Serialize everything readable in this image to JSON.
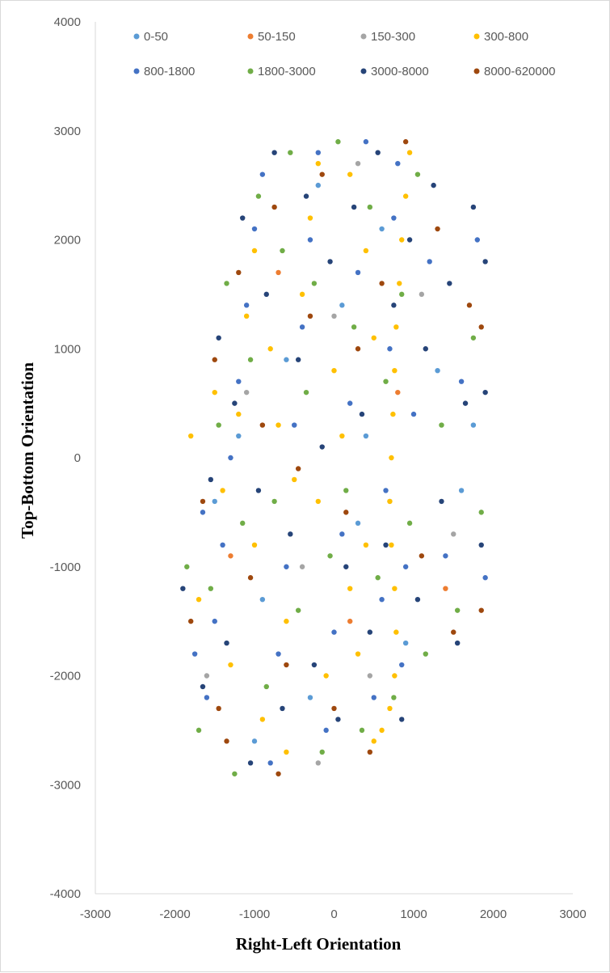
{
  "chart_data": {
    "type": "scatter",
    "title": "",
    "xlabel": "Right-Left Orientation",
    "ylabel": "Top-Bottom Orientation",
    "xlim": [
      -3000,
      3000
    ],
    "ylim": [
      -4000,
      4000
    ],
    "x_ticks": [
      "-3000",
      "-2000",
      "-1000",
      "0",
      "1000",
      "2000",
      "3000"
    ],
    "y_ticks": [
      "4000",
      "3000",
      "2000",
      "1000",
      "0",
      "-1000",
      "-2000",
      "-3000",
      "-4000"
    ],
    "grid": false,
    "legend_position": "top",
    "series": [
      {
        "name": "0-50",
        "color": "#5b9bd5",
        "points": [
          [
            -1500,
            -400
          ],
          [
            -1200,
            200
          ],
          [
            -900,
            -1300
          ],
          [
            -600,
            900
          ],
          [
            -300,
            -2200
          ],
          [
            100,
            1400
          ],
          [
            300,
            -600
          ],
          [
            600,
            2100
          ],
          [
            900,
            -1700
          ],
          [
            1300,
            800
          ],
          [
            1600,
            -300
          ],
          [
            1750,
            300
          ],
          [
            -1000,
            -2600
          ],
          [
            400,
            200
          ],
          [
            -200,
            2500
          ]
        ]
      },
      {
        "name": "50-150",
        "color": "#ed7d31",
        "points": [
          [
            -1300,
            -900
          ],
          [
            -700,
            1700
          ],
          [
            200,
            -1500
          ],
          [
            800,
            600
          ],
          [
            1400,
            -1200
          ]
        ]
      },
      {
        "name": "150-300",
        "color": "#a5a5a5",
        "points": [
          [
            -1100,
            600
          ],
          [
            -400,
            -1000
          ],
          [
            0,
            1300
          ],
          [
            450,
            -2000
          ],
          [
            700,
            -400
          ],
          [
            1100,
            1500
          ],
          [
            -1600,
            -2000
          ],
          [
            -200,
            -2800
          ],
          [
            300,
            2700
          ],
          [
            1500,
            -700
          ]
        ]
      },
      {
        "name": "300-800",
        "color": "#ffc000",
        "points": [
          [
            950,
            2800
          ],
          [
            900,
            2400
          ],
          [
            850,
            2000
          ],
          [
            820,
            1600
          ],
          [
            780,
            1200
          ],
          [
            760,
            800
          ],
          [
            740,
            400
          ],
          [
            720,
            0
          ],
          [
            700,
            -400
          ],
          [
            720,
            -800
          ],
          [
            760,
            -1200
          ],
          [
            780,
            -1600
          ],
          [
            760,
            -2000
          ],
          [
            700,
            -2300
          ],
          [
            600,
            -2500
          ],
          [
            500,
            -2600
          ],
          [
            -1400,
            -300
          ],
          [
            -1200,
            400
          ],
          [
            -1000,
            -800
          ],
          [
            -800,
            1000
          ],
          [
            -600,
            -1500
          ],
          [
            -400,
            1500
          ],
          [
            -200,
            -400
          ],
          [
            0,
            800
          ],
          [
            200,
            -1200
          ],
          [
            400,
            1900
          ],
          [
            -1700,
            -1300
          ],
          [
            -1500,
            600
          ],
          [
            -1300,
            -1900
          ],
          [
            -1100,
            1300
          ],
          [
            -900,
            -2400
          ],
          [
            -700,
            300
          ],
          [
            -500,
            -200
          ],
          [
            -300,
            2200
          ],
          [
            -100,
            -2000
          ],
          [
            100,
            200
          ],
          [
            300,
            -1800
          ],
          [
            500,
            1100
          ],
          [
            -1800,
            200
          ],
          [
            -1000,
            1900
          ],
          [
            -600,
            -2700
          ],
          [
            -200,
            2700
          ],
          [
            200,
            2600
          ],
          [
            400,
            -800
          ]
        ]
      },
      {
        "name": "800-1800",
        "color": "#4472c4",
        "points": [
          [
            -1600,
            -2200
          ],
          [
            -1500,
            -1500
          ],
          [
            -1400,
            -800
          ],
          [
            -1300,
            0
          ],
          [
            -1200,
            700
          ],
          [
            -1100,
            1400
          ],
          [
            -1000,
            2100
          ],
          [
            -900,
            2600
          ],
          [
            -800,
            -2800
          ],
          [
            -700,
            -1800
          ],
          [
            -600,
            -1000
          ],
          [
            -500,
            300
          ],
          [
            -400,
            1200
          ],
          [
            -300,
            2000
          ],
          [
            -200,
            2800
          ],
          [
            -100,
            -2500
          ],
          [
            0,
            -1600
          ],
          [
            100,
            -700
          ],
          [
            200,
            500
          ],
          [
            300,
            1700
          ],
          [
            400,
            2900
          ],
          [
            500,
            -2200
          ],
          [
            600,
            -1300
          ],
          [
            650,
            -300
          ],
          [
            700,
            1000
          ],
          [
            750,
            2200
          ],
          [
            800,
            2700
          ],
          [
            850,
            -1900
          ],
          [
            900,
            -1000
          ],
          [
            1000,
            400
          ],
          [
            1200,
            1800
          ],
          [
            1400,
            -900
          ],
          [
            1600,
            700
          ],
          [
            1800,
            2000
          ],
          [
            1900,
            -1100
          ],
          [
            -1750,
            -1800
          ],
          [
            -1650,
            -500
          ]
        ]
      },
      {
        "name": "1800-3000",
        "color": "#70ad47",
        "points": [
          [
            -1850,
            -1000
          ],
          [
            -1700,
            -2500
          ],
          [
            -1550,
            -1200
          ],
          [
            -1450,
            300
          ],
          [
            -1350,
            1600
          ],
          [
            -1250,
            -2900
          ],
          [
            -1150,
            -600
          ],
          [
            -1050,
            900
          ],
          [
            -950,
            2400
          ],
          [
            -850,
            -2100
          ],
          [
            -750,
            -400
          ],
          [
            -650,
            1900
          ],
          [
            -550,
            2800
          ],
          [
            -450,
            -1400
          ],
          [
            -350,
            600
          ],
          [
            -250,
            1600
          ],
          [
            -150,
            -2700
          ],
          [
            -50,
            -900
          ],
          [
            50,
            2900
          ],
          [
            150,
            -300
          ],
          [
            250,
            1200
          ],
          [
            350,
            -2500
          ],
          [
            450,
            2300
          ],
          [
            550,
            -1100
          ],
          [
            650,
            700
          ],
          [
            750,
            -2200
          ],
          [
            850,
            1500
          ],
          [
            950,
            -600
          ],
          [
            1050,
            2600
          ],
          [
            1150,
            -1800
          ],
          [
            1350,
            300
          ],
          [
            1550,
            -1400
          ],
          [
            1750,
            1100
          ],
          [
            1850,
            -500
          ]
        ]
      },
      {
        "name": "3000-8000",
        "color": "#264478",
        "points": [
          [
            -1900,
            -1200
          ],
          [
            -1650,
            -2100
          ],
          [
            -1550,
            -200
          ],
          [
            -1450,
            1100
          ],
          [
            -1350,
            -1700
          ],
          [
            -1250,
            500
          ],
          [
            -1150,
            2200
          ],
          [
            -1050,
            -2800
          ],
          [
            -950,
            -300
          ],
          [
            -850,
            1500
          ],
          [
            -750,
            2800
          ],
          [
            -650,
            -2300
          ],
          [
            -550,
            -700
          ],
          [
            -450,
            900
          ],
          [
            -350,
            2400
          ],
          [
            -250,
            -1900
          ],
          [
            -150,
            100
          ],
          [
            -50,
            1800
          ],
          [
            50,
            -2400
          ],
          [
            150,
            -1000
          ],
          [
            250,
            2300
          ],
          [
            350,
            400
          ],
          [
            450,
            -1600
          ],
          [
            550,
            2800
          ],
          [
            650,
            -800
          ],
          [
            750,
            1400
          ],
          [
            850,
            -2400
          ],
          [
            950,
            2000
          ],
          [
            1050,
            -1300
          ],
          [
            1150,
            1000
          ],
          [
            1250,
            2500
          ],
          [
            1350,
            -400
          ],
          [
            1450,
            1600
          ],
          [
            1550,
            -1700
          ],
          [
            1650,
            500
          ],
          [
            1750,
            2300
          ],
          [
            1850,
            -800
          ],
          [
            1900,
            1800
          ],
          [
            1900,
            600
          ]
        ]
      },
      {
        "name": "8000-620000",
        "color": "#9e480e",
        "points": [
          [
            -1800,
            -1500
          ],
          [
            -1650,
            -400
          ],
          [
            -1500,
            900
          ],
          [
            -1350,
            -2600
          ],
          [
            -1200,
            1700
          ],
          [
            -1050,
            -1100
          ],
          [
            -900,
            300
          ],
          [
            -750,
            2300
          ],
          [
            -600,
            -1900
          ],
          [
            -450,
            -100
          ],
          [
            -300,
            1300
          ],
          [
            -150,
            2600
          ],
          [
            0,
            -2300
          ],
          [
            150,
            -500
          ],
          [
            300,
            1000
          ],
          [
            450,
            -2700
          ],
          [
            600,
            1600
          ],
          [
            900,
            2900
          ],
          [
            1100,
            -900
          ],
          [
            1300,
            2100
          ],
          [
            1500,
            -1600
          ],
          [
            1700,
            1400
          ],
          [
            1850,
            -1400
          ],
          [
            1850,
            1200
          ],
          [
            -1450,
            -2300
          ],
          [
            -700,
            -2900
          ]
        ]
      }
    ]
  }
}
